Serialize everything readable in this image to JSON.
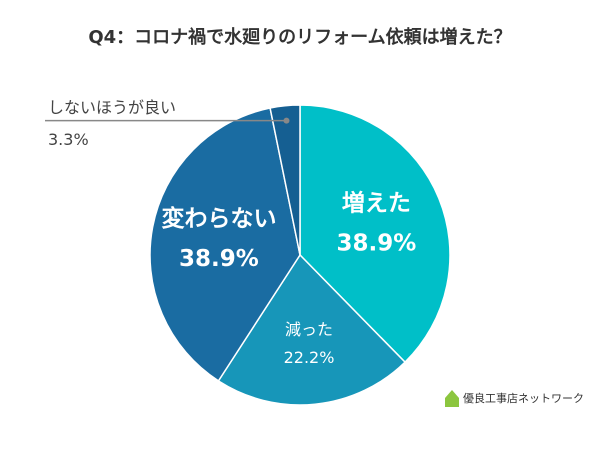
{
  "chart_data": {
    "type": "pie",
    "title": "Q4：コロナ禍で水廻りのリフォーム依頼は増えた？",
    "categories": [
      "増えた",
      "減った",
      "変わらない",
      "しないほうが良い"
    ],
    "values": [
      38.9,
      22.2,
      38.9,
      3.3
    ],
    "value_labels": [
      "38.9%",
      "22.2%",
      "38.9%",
      "3.3%"
    ],
    "colors": [
      "#00bfc8",
      "#1796b9",
      "#1a6ca2",
      "#155f92"
    ],
    "logo": "優良工事店ネットワーク"
  }
}
